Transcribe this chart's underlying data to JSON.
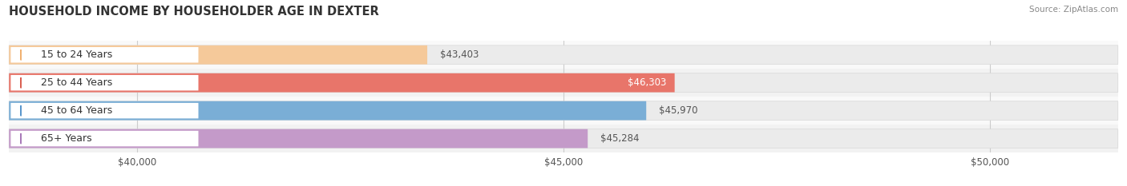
{
  "title": "HOUSEHOLD INCOME BY HOUSEHOLDER AGE IN DEXTER",
  "source": "Source: ZipAtlas.com",
  "categories": [
    "15 to 24 Years",
    "25 to 44 Years",
    "45 to 64 Years",
    "65+ Years"
  ],
  "values": [
    43403,
    46303,
    45970,
    45284
  ],
  "bar_colors": [
    "#f5c99a",
    "#e8756a",
    "#7aaed6",
    "#c49ac9"
  ],
  "dot_colors": [
    "#f0b070",
    "#d95f52",
    "#5a96cc",
    "#a87ab8"
  ],
  "label_colors": [
    "#333333",
    "#333333",
    "#333333",
    "#333333"
  ],
  "value_label_colors": [
    "#555555",
    "#ffffff",
    "#555555",
    "#555555"
  ],
  "value_labels": [
    "$43,403",
    "$46,303",
    "$45,970",
    "$45,284"
  ],
  "xlim": [
    38500,
    51500
  ],
  "xmin": 38500,
  "xmax": 51500,
  "data_min": 38500,
  "xticks": [
    40000,
    45000,
    50000
  ],
  "xtick_labels": [
    "$40,000",
    "$45,000",
    "$50,000"
  ],
  "background_color": "#ffffff",
  "bar_background_color": "#ebebeb",
  "row_bg_colors": [
    "#f9f9f9",
    "#f2f2f2",
    "#f9f9f9",
    "#f2f2f2"
  ],
  "bar_height": 0.68,
  "title_fontsize": 10.5,
  "label_fontsize": 9,
  "value_fontsize": 8.5,
  "tick_fontsize": 8.5
}
